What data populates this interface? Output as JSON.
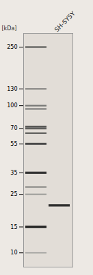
{
  "chart_data": {
    "type": "blot",
    "title": "SH-SY5Y",
    "ylabel": "[kDa]",
    "log": "y",
    "ylim": [
      8,
      310
    ],
    "yticks": [
      250,
      130,
      100,
      70,
      55,
      35,
      25,
      15,
      10
    ],
    "series": [
      {
        "values": [
          250,
          130,
          100,
          95,
          72,
          70,
          65,
          55,
          35,
          28,
          25,
          15,
          10
        ],
        "darkness": [
          0.5,
          0.38,
          0.42,
          0.4,
          0.58,
          0.55,
          0.5,
          0.65,
          0.75,
          0.32,
          0.28,
          0.82,
          0.22
        ]
      },
      {
        "values": [
          21
        ],
        "darkness": [
          0.78
        ]
      }
    ]
  }
}
